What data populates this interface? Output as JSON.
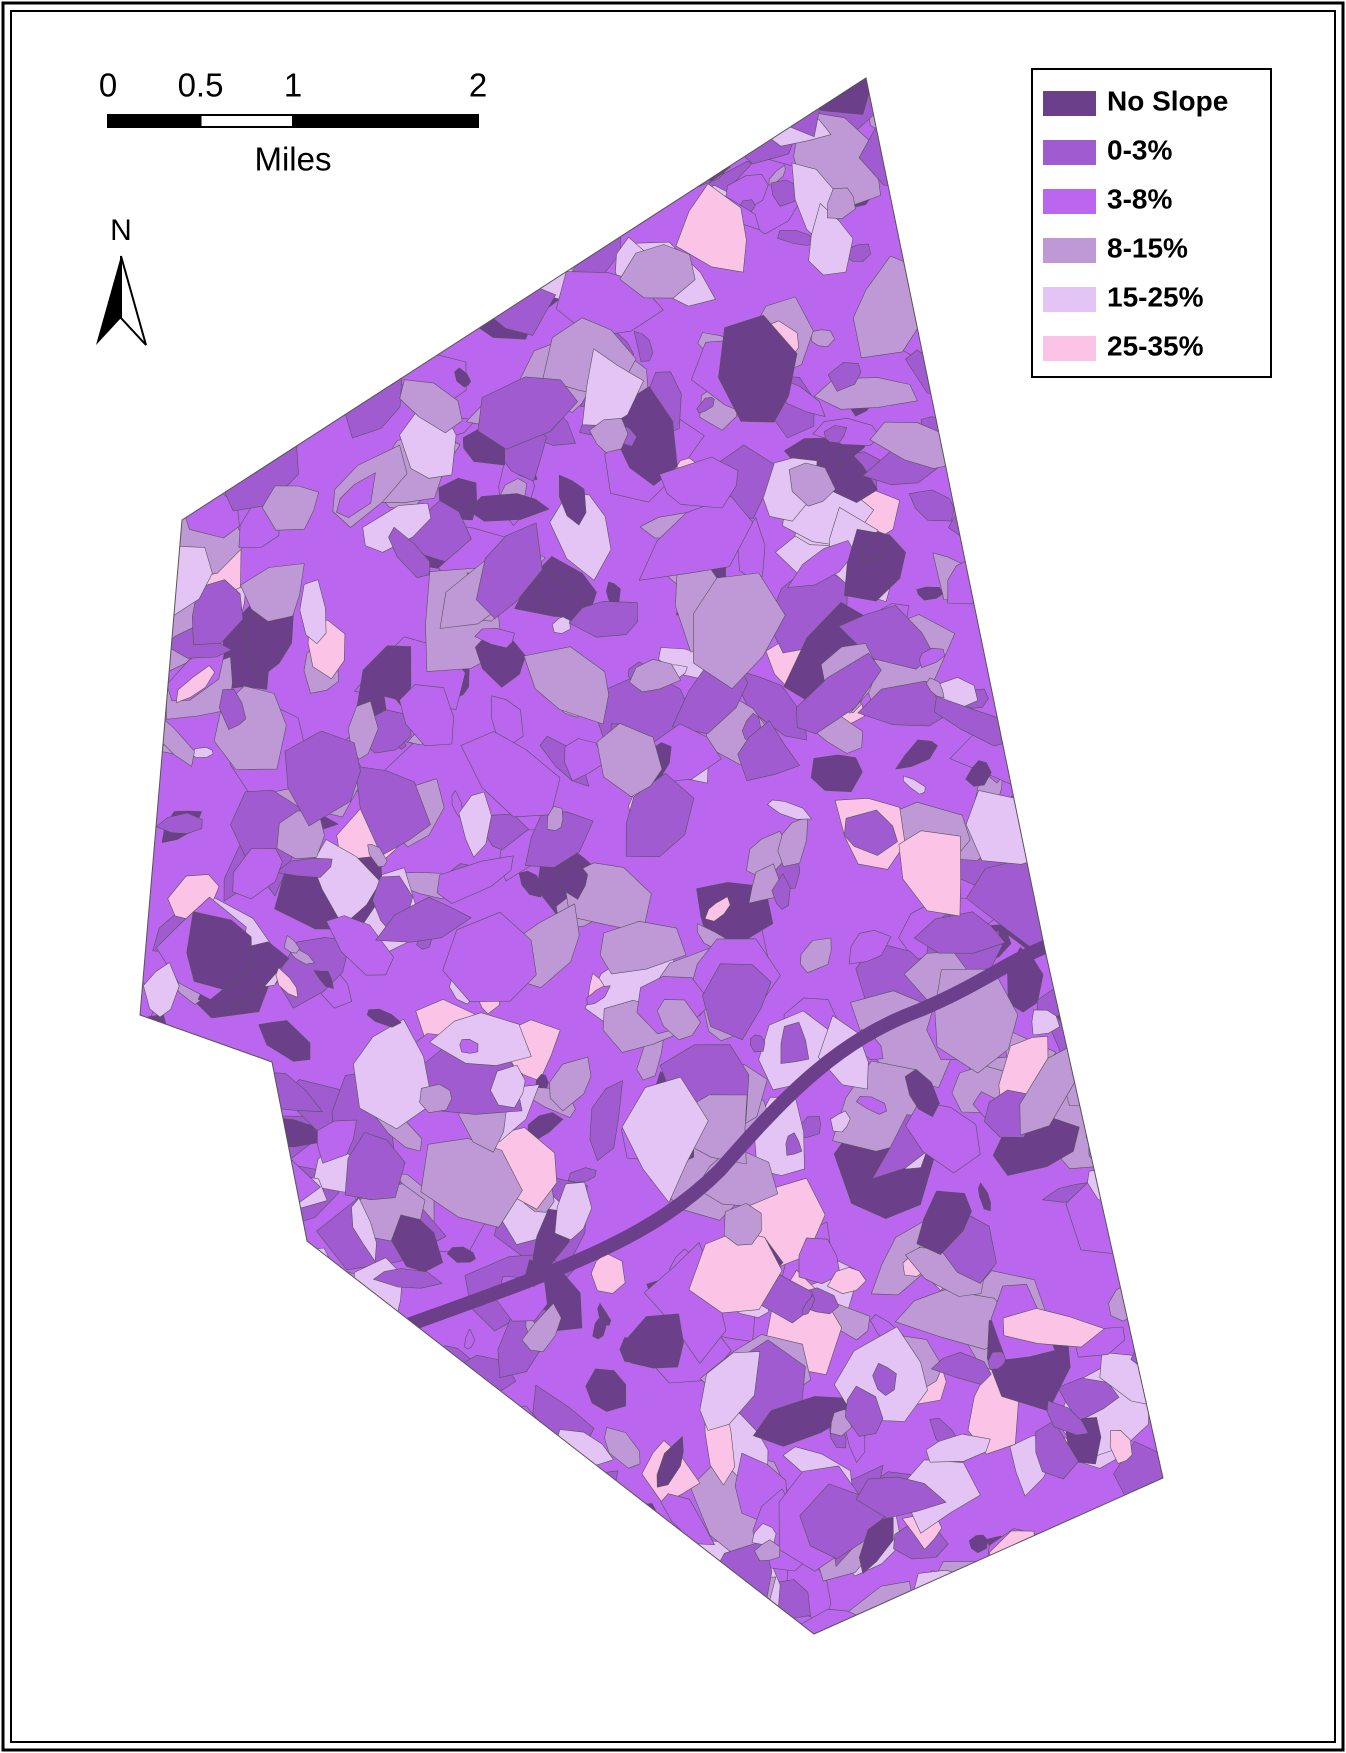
{
  "scale_bar": {
    "ticks": [
      0,
      0.5,
      1,
      2
    ],
    "unit": "Miles"
  },
  "north_arrow": {
    "label": "N"
  },
  "legend": {
    "items": [
      {
        "label": "No Slope",
        "color": "#6b3f8a"
      },
      {
        "label": "0-3%",
        "color": "#a05bd0"
      },
      {
        "label": "3-8%",
        "color": "#bb66ee"
      },
      {
        "label": "8-15%",
        "color": "#bf99d6"
      },
      {
        "label": "15-25%",
        "color": "#e4c4f5"
      },
      {
        "label": "25-35%",
        "color": "#fbc3e6"
      }
    ]
  }
}
